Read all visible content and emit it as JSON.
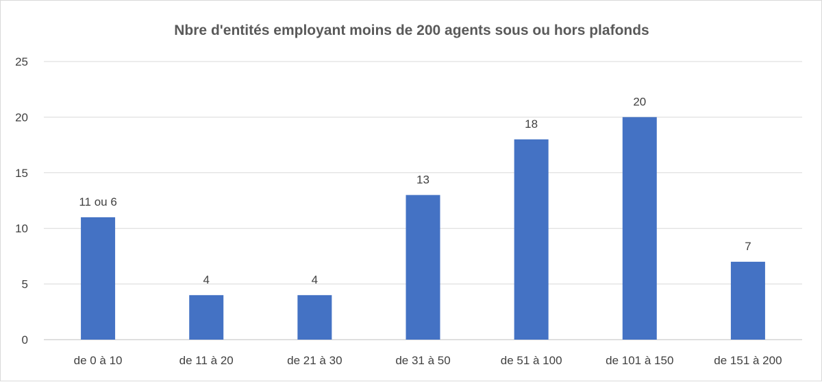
{
  "chart_data": {
    "type": "bar",
    "title": "Nbre d'entités employant moins de 200 agents sous ou hors plafonds",
    "xlabel": "",
    "ylabel": "",
    "ylim": [
      0,
      25
    ],
    "yticks": [
      0,
      5,
      10,
      15,
      20,
      25
    ],
    "grid": true,
    "legend": "none",
    "categories": [
      "de 0 à 10",
      "de 11 à 20",
      "de 21 à 30",
      "de 31 à 50",
      "de 51 à 100",
      "de 101 à 150",
      "de 151 à 200"
    ],
    "values": [
      11,
      4,
      4,
      13,
      18,
      20,
      7
    ],
    "data_labels": [
      "11 ou 6",
      "4",
      "4",
      "13",
      "18",
      "20",
      "7"
    ],
    "colors": {
      "bar": "#4472C4",
      "grid": "#d9d9d9",
      "axis": "#bfbfbf",
      "text": "#404040",
      "title": "#595959"
    }
  }
}
